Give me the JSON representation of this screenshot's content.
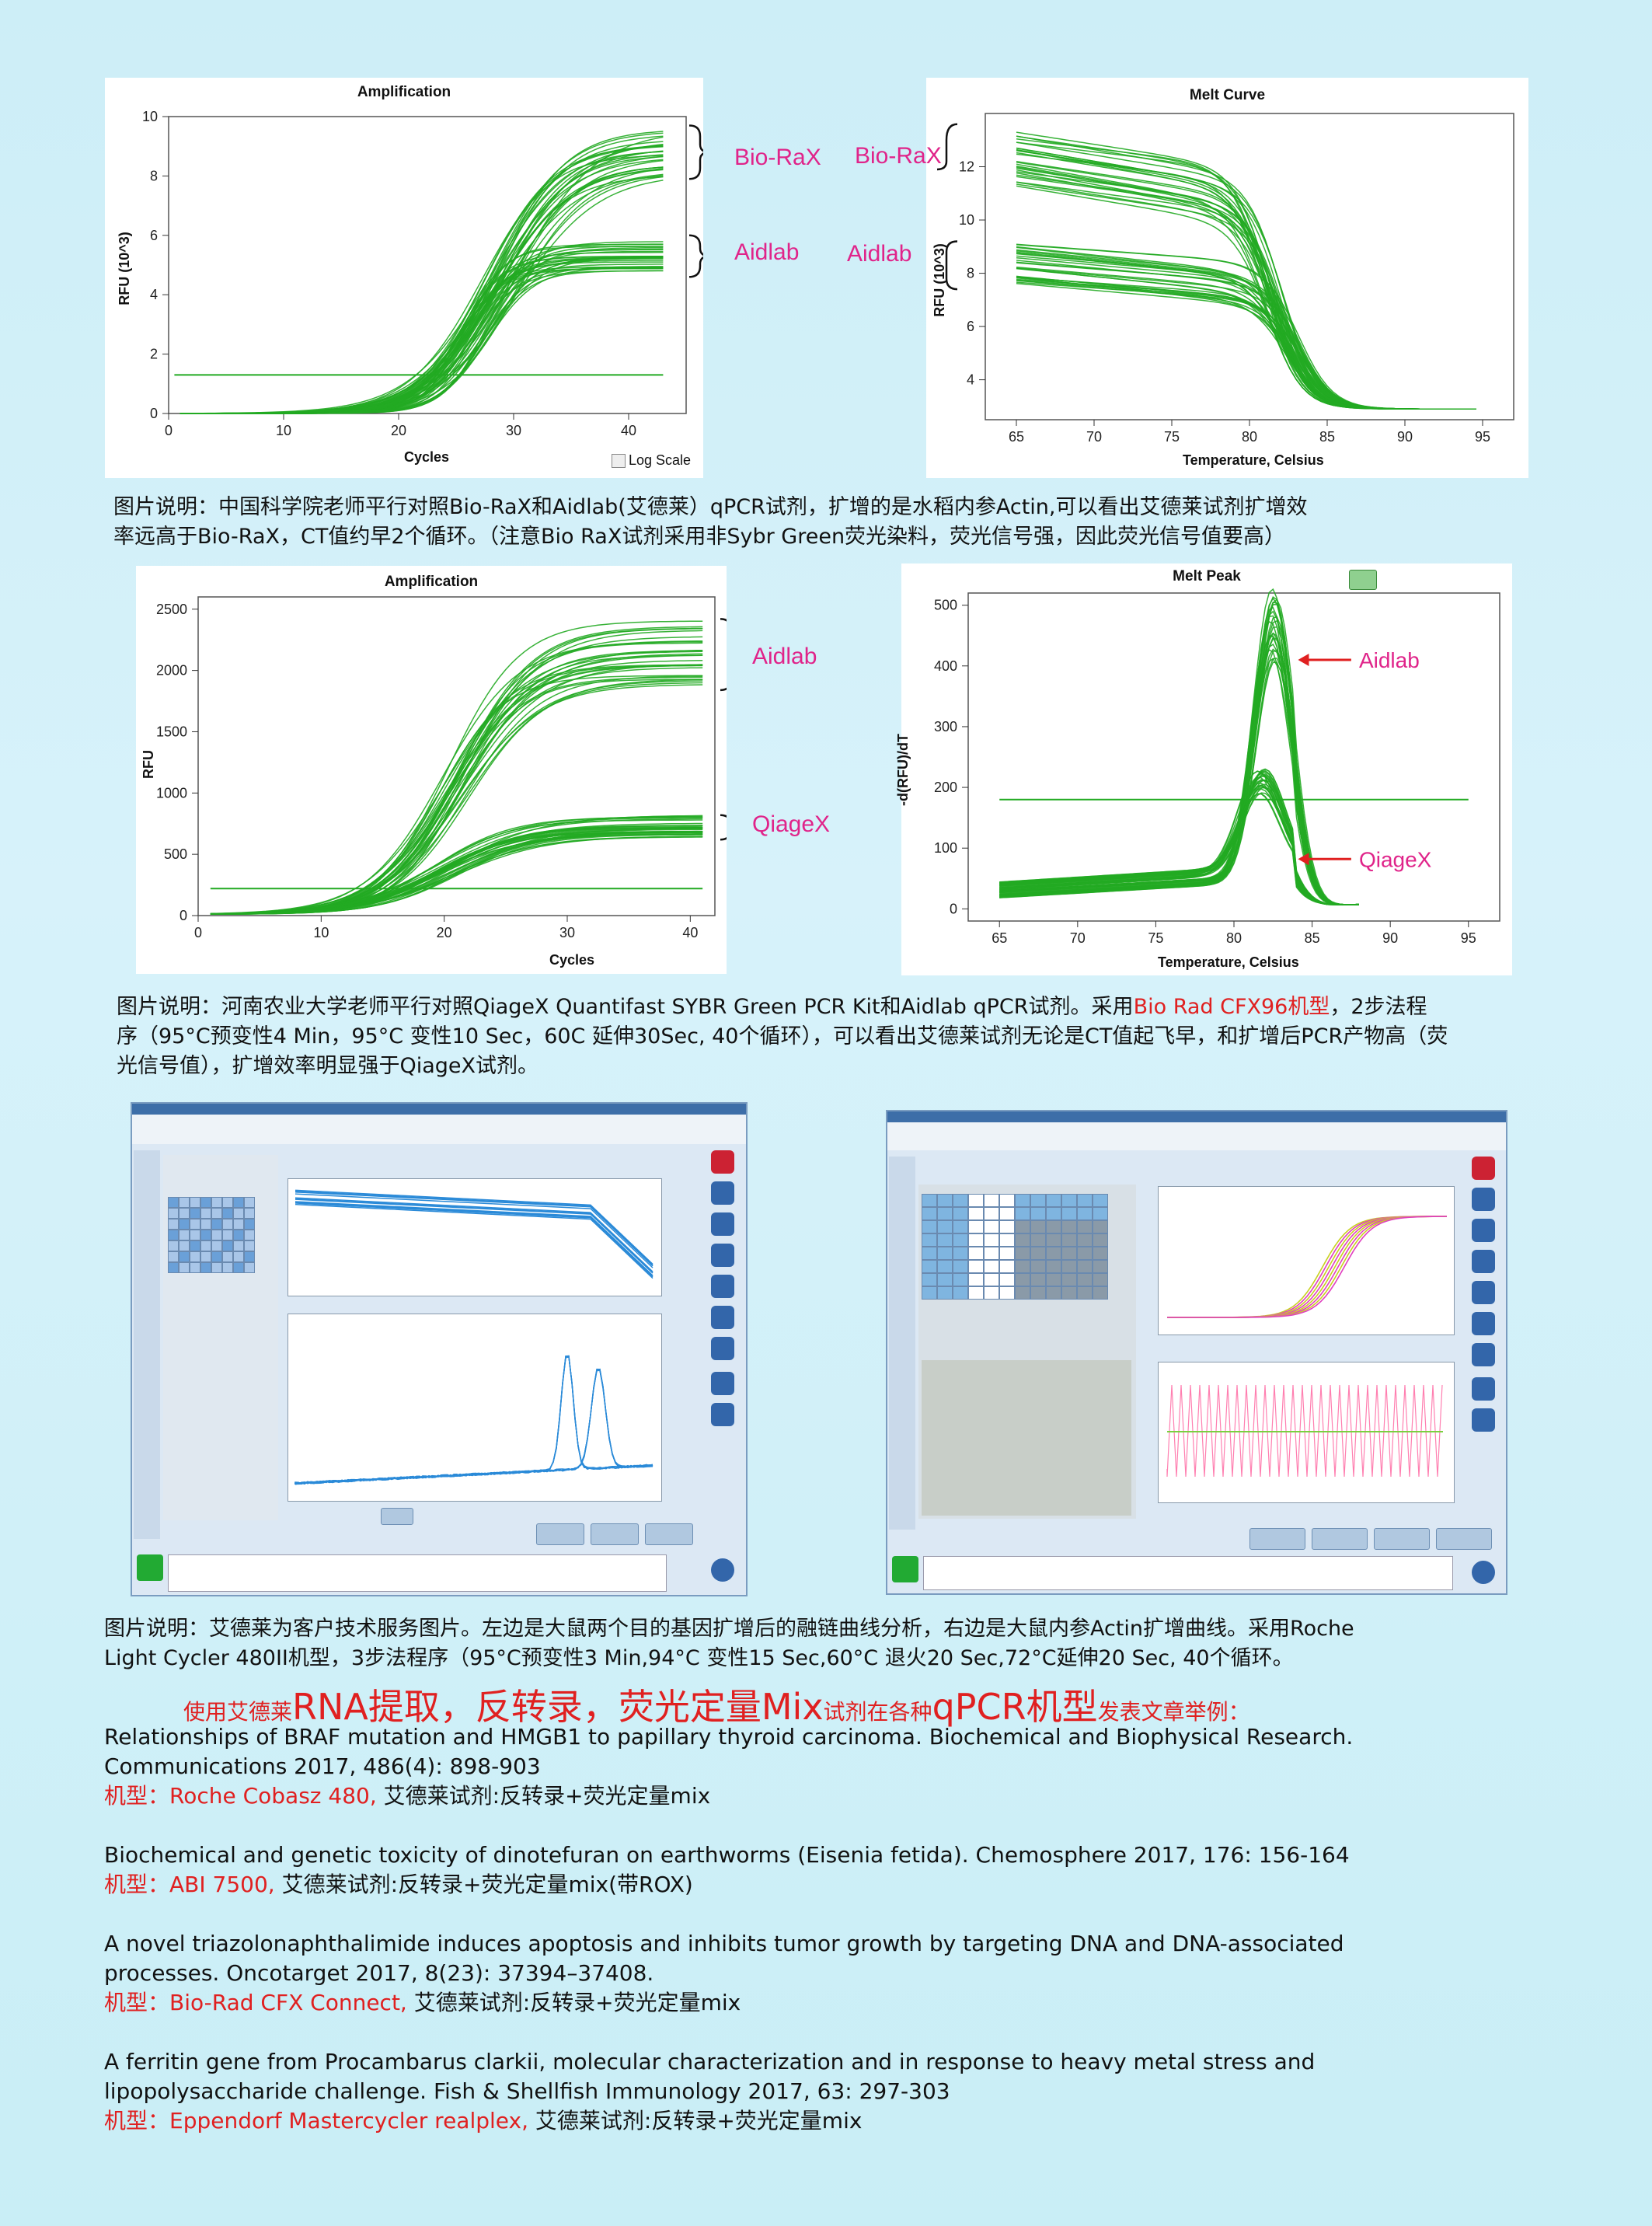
{
  "chart_data": [
    {
      "type": "line",
      "title": "Amplification",
      "xlabel": "Cycles",
      "ylabel": "RFU (10^3)",
      "xlim": [
        0,
        45
      ],
      "ylim": [
        0,
        10
      ],
      "x_ticks": [
        "0",
        "10",
        "20",
        "30",
        "40"
      ],
      "y_ticks": [
        "0",
        "2",
        "4",
        "6",
        "8",
        "10"
      ],
      "threshold": 1.3,
      "series": [
        {
          "name": "Bio-RaX",
          "values_range_end": [
            8,
            9.6
          ]
        },
        {
          "name": "Aidlab",
          "values_range_end": [
            4.8,
            5.8
          ]
        }
      ],
      "legend_option": "Log Scale"
    },
    {
      "type": "line",
      "title": "Melt Curve",
      "xlabel": "Temperature, Celsius",
      "ylabel": "RFU (10^3)",
      "xlim": [
        63,
        97
      ],
      "ylim": [
        2.5,
        14
      ],
      "x_ticks": [
        "65",
        "70",
        "75",
        "80",
        "85",
        "90",
        "95"
      ],
      "y_ticks": [
        "4",
        "6",
        "8",
        "10",
        "12"
      ],
      "series": [
        {
          "name": "Bio-RaX",
          "start_range": [
            11,
            13
          ]
        },
        {
          "name": "Aidlab",
          "start_range": [
            7.5,
            9
          ]
        }
      ]
    },
    {
      "type": "line",
      "title": "Amplification",
      "xlabel": "Cycles",
      "ylabel": "RFU",
      "xlim": [
        0,
        42
      ],
      "ylim": [
        0,
        2600
      ],
      "x_ticks": [
        "0",
        "10",
        "20",
        "30",
        "40"
      ],
      "y_ticks": [
        "0",
        "500",
        "1000",
        "1500",
        "2000",
        "2500"
      ],
      "threshold": 220,
      "series": [
        {
          "name": "Aidlab",
          "values_range_end": [
            1850,
            2400
          ]
        },
        {
          "name": "QiageX",
          "values_range_end": [
            650,
            800
          ]
        }
      ]
    },
    {
      "type": "line",
      "title": "Melt Peak",
      "xlabel": "Temperature, Celsius",
      "ylabel": "-d(RFU)/dT",
      "xlim": [
        63,
        97
      ],
      "ylim": [
        -20,
        520
      ],
      "x_ticks": [
        "65",
        "70",
        "75",
        "80",
        "85",
        "90",
        "95"
      ],
      "y_ticks": [
        "0",
        "100",
        "200",
        "300",
        "400",
        "500"
      ],
      "threshold": 180,
      "series": [
        {
          "name": "Aidlab",
          "peak_temp": 82.5,
          "peak_range": [
            380,
            500
          ]
        },
        {
          "name": "QiageX",
          "peak_temp": 81.5,
          "peak_range": [
            180,
            205
          ]
        }
      ]
    }
  ],
  "annotations": {
    "chart1_biorax": "Bio-RaX",
    "chart1_aidlab": "Aidlab",
    "chart2_biorax": "Bio-RaX",
    "chart2_aidlab": "Aidlab",
    "chart3_aidlab": "Aidlab",
    "chart3_qiagex": "QiageX",
    "chart4_aidlab": "Aidlab",
    "chart4_qiagex": "QiageX"
  },
  "captions": {
    "caption1_line1": "图片说明：中国科学院老师平行对照Bio-RaX和Aidlab(艾德莱）qPCR试剂，扩增的是水稻内参Actin,可以看出艾德莱试剂扩增效",
    "caption1_line2": "率远高于Bio-RaX，CT值约早2个循环。（注意Bio RaX试剂采用非Sybr Green荧光染料，荧光信号强，因此荧光信号值要高）",
    "caption2_part1": "图片说明：河南农业大学老师平行对照QiageX Quantifast SYBR Green PCR Kit和Aidlab qPCR试剂。采用",
    "caption2_red": "Bio Rad CFX96机型",
    "caption2_part2": "，2步法程",
    "caption2_line2": "序（95°C预变性4 Min，95°C 变性10 Sec，60C 延伸30Sec, 40个循环），可以看出艾德莱试剂无论是CT值起飞早，和扩增后PCR产物高（荧",
    "caption2_line3": "光信号值），扩增效率明显强于QiageX试剂。",
    "caption3_line1": "图片说明：艾德莱为客户技术服务图片。左边是大鼠两个目的基因扩增后的融链曲线分析，右边是大鼠内参Actin扩增曲线。采用Roche",
    "caption3_line2": "Light Cycler 480II机型，3步法程序（95°C预变性3 Min,94°C 变性15 Sec,60°C 退火20 Sec,72°C延伸20 Sec, 40个循环。"
  },
  "heading": {
    "part1": "使用艾德莱",
    "part2": "RNA提取，反转录，荧光定量Mix",
    "part3": "试剂在各种",
    "part4": "qPCR机型",
    "part5": "发表文章举例："
  },
  "references": [
    {
      "line1": "Relationships of BRAF mutation and HMGB1 to papillary thyroid carcinoma. Biochemical and Biophysical Research.",
      "line2": "Communications 2017, 486(4): 898-903",
      "model_red": "机型：Roche Cobasz 480,",
      "model_rest": " 艾德莱试剂:反转录+荧光定量mix"
    },
    {
      "line1": "Biochemical and genetic toxicity of dinotefuran on earthworms (Eisenia fetida). Chemosphere 2017, 176: 156-164",
      "line2": "",
      "model_red": "机型：ABI 7500,",
      "model_rest": " 艾德莱试剂:反转录+荧光定量mix(带ROX)"
    },
    {
      "line1": "A novel triazolonaphthalimide induces apoptosis and inhibits tumor growth by targeting DNA and DNA-associated",
      "line2": "processes. Oncotarget 2017, 8(23): 37394–37408.",
      "model_red": "机型：Bio-Rad CFX Connect,",
      "model_rest": " 艾德莱试剂:反转录+荧光定量mix"
    },
    {
      "line1": "A ferritin gene from Procambarus clarkii, molecular characterization and in response to heavy metal stress and",
      "line2": "lipopolysaccharide challenge. Fish & Shellfish Immunology 2017, 63: 297-303",
      "model_red": "机型：Eppendorf Mastercycler realplex,",
      "model_rest": " 艾德莱试剂:反转录+荧光定量mix"
    }
  ],
  "colors": {
    "curve": "#22aa22",
    "annotation": "#e0248a",
    "red_text": "#e02020"
  }
}
